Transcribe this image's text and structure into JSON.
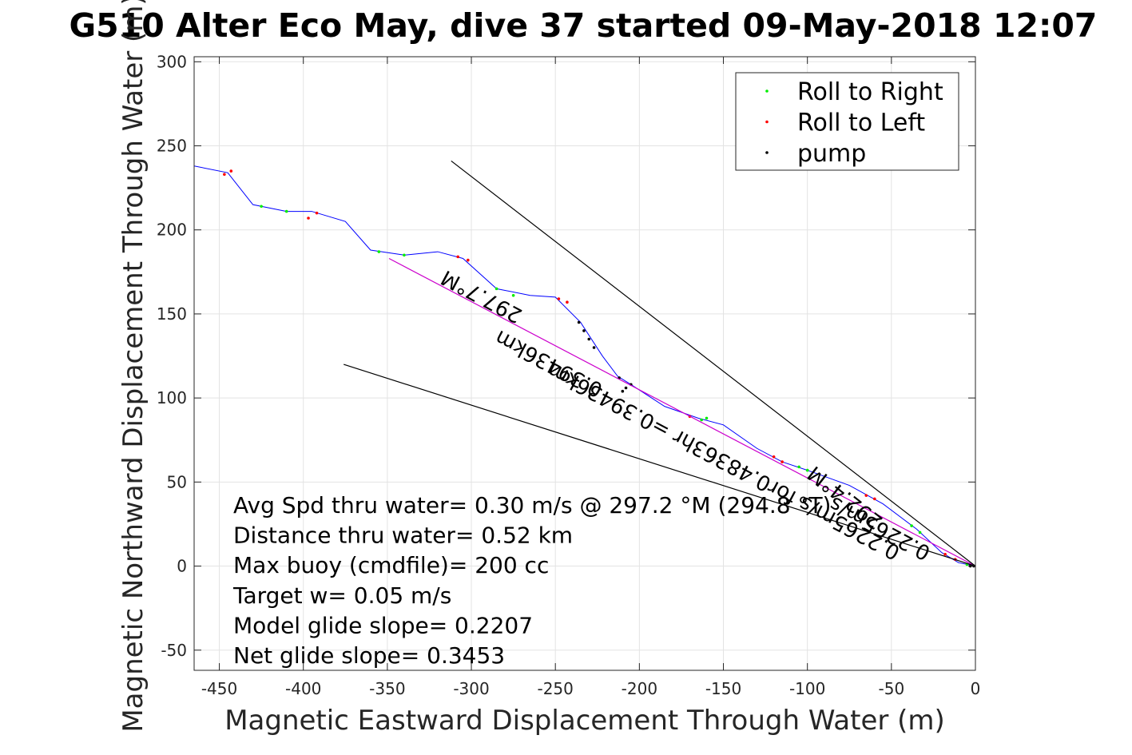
{
  "chart_data": {
    "type": "line",
    "title": "G510 Alter Eco May, dive 37 started 09-May-2018 12:07",
    "xlabel": "Magnetic Eastward Displacement Through Water (m)",
    "ylabel": "Magnetic Northward Displacement Through Water (m)",
    "xlim": [
      -465,
      0
    ],
    "ylim": [
      -62,
      303
    ],
    "x_ticks": [
      -450,
      -400,
      -350,
      -300,
      -250,
      -200,
      -150,
      -100,
      -50,
      0
    ],
    "x_tick_labels": [
      "-450",
      "-400",
      "-350",
      "-300",
      "-250",
      "-200",
      "-150",
      "-100",
      "-50",
      "0"
    ],
    "y_ticks": [
      -50,
      0,
      50,
      100,
      150,
      200,
      250,
      300
    ],
    "y_tick_labels": [
      "-50",
      "0",
      "50",
      "100",
      "150",
      "200",
      "250",
      "300"
    ],
    "grid": true,
    "legend_position": "top-right",
    "legend": [
      {
        "label": "Roll to Right",
        "color": "#00ee00"
      },
      {
        "label": "Roll to Left",
        "color": "#ff0000"
      },
      {
        "label": "pump",
        "color": "#000000"
      }
    ],
    "series": [
      {
        "name": "track",
        "color": "#0000ff",
        "points": [
          [
            0,
            0
          ],
          [
            -10,
            2
          ],
          [
            -20,
            8
          ],
          [
            -35,
            22
          ],
          [
            -55,
            37
          ],
          [
            -75,
            48
          ],
          [
            -100,
            57
          ],
          [
            -115,
            62
          ],
          [
            -130,
            70
          ],
          [
            -150,
            84
          ],
          [
            -165,
            88
          ],
          [
            -185,
            95
          ],
          [
            -205,
            108
          ],
          [
            -213,
            113
          ],
          [
            -222,
            125
          ],
          [
            -235,
            145
          ],
          [
            -250,
            160
          ],
          [
            -265,
            161
          ],
          [
            -285,
            165
          ],
          [
            -305,
            183
          ],
          [
            -320,
            187
          ],
          [
            -340,
            185
          ],
          [
            -360,
            188
          ],
          [
            -375,
            205
          ],
          [
            -395,
            211
          ],
          [
            -410,
            211
          ],
          [
            -430,
            215
          ],
          [
            -445,
            234
          ],
          [
            -465,
            238
          ]
        ]
      },
      {
        "name": "Roll to Right",
        "color": "#00ee00",
        "points": [
          [
            -5,
            1
          ],
          [
            -33,
            20
          ],
          [
            -38,
            24
          ],
          [
            -100,
            57
          ],
          [
            -105,
            59
          ],
          [
            -160,
            88
          ],
          [
            -163,
            87
          ],
          [
            -275,
            161
          ],
          [
            -285,
            165
          ],
          [
            -340,
            185
          ],
          [
            -355,
            187
          ],
          [
            -410,
            211
          ],
          [
            -425,
            214
          ]
        ]
      },
      {
        "name": "Roll to Left",
        "color": "#ff0000",
        "points": [
          [
            -12,
            4
          ],
          [
            -18,
            7
          ],
          [
            -60,
            40
          ],
          [
            -65,
            42
          ],
          [
            -115,
            62
          ],
          [
            -120,
            65
          ],
          [
            -170,
            89
          ],
          [
            -243,
            157
          ],
          [
            -248,
            159
          ],
          [
            -308,
            184
          ],
          [
            -302,
            182
          ],
          [
            -392,
            210
          ],
          [
            -397,
            207
          ],
          [
            -443,
            235
          ],
          [
            -447,
            233
          ]
        ]
      },
      {
        "name": "pump",
        "color": "#000000",
        "points": [
          [
            -1,
            0
          ],
          [
            -3,
            0
          ],
          [
            -205,
            108
          ],
          [
            -208,
            106
          ],
          [
            -210,
            104
          ],
          [
            -212,
            112
          ],
          [
            -227,
            130
          ],
          [
            -230,
            135
          ],
          [
            -233,
            140
          ],
          [
            -236,
            145
          ]
        ]
      },
      {
        "name": "",
        "color": "#cc00cc",
        "points": [
          [
            0,
            0
          ],
          [
            -349,
            183
          ]
        ]
      },
      {
        "name": "",
        "color": "#000000",
        "points": [
          [
            0,
            0
          ],
          [
            -312,
            241
          ]
        ]
      },
      {
        "name": "",
        "color": "#000000",
        "points": [
          [
            0,
            0
          ],
          [
            -376,
            120
          ]
        ]
      }
    ],
    "annotations": [
      {
        "text": "297.7°M",
        "x": -292,
        "y": 164,
        "angle": 208
      },
      {
        "text": "0.39436km",
        "x": -252,
        "y": 124,
        "angle": 208
      },
      {
        "text": "0.2265m/s for0.48363hr =0.39436km",
        "x": -148,
        "y": 66,
        "angle": 208
      },
      {
        "text": "292.4°M",
        "x": -75,
        "y": 44,
        "angle": 218
      },
      {
        "text": "0.2265m/s",
        "x": -55,
        "y": 26,
        "angle": 208
      }
    ],
    "text_box": [
      "Avg Spd thru water=  0.30 m/s @ 297.2 °M (294.8 °T)",
      "Distance thru water=  0.52 km",
      "Max buoy (cmdfile)= 200 cc",
      "Target w= 0.05 m/s",
      "Model glide slope= 0.2207",
      "Net glide slope= 0.3453"
    ]
  }
}
